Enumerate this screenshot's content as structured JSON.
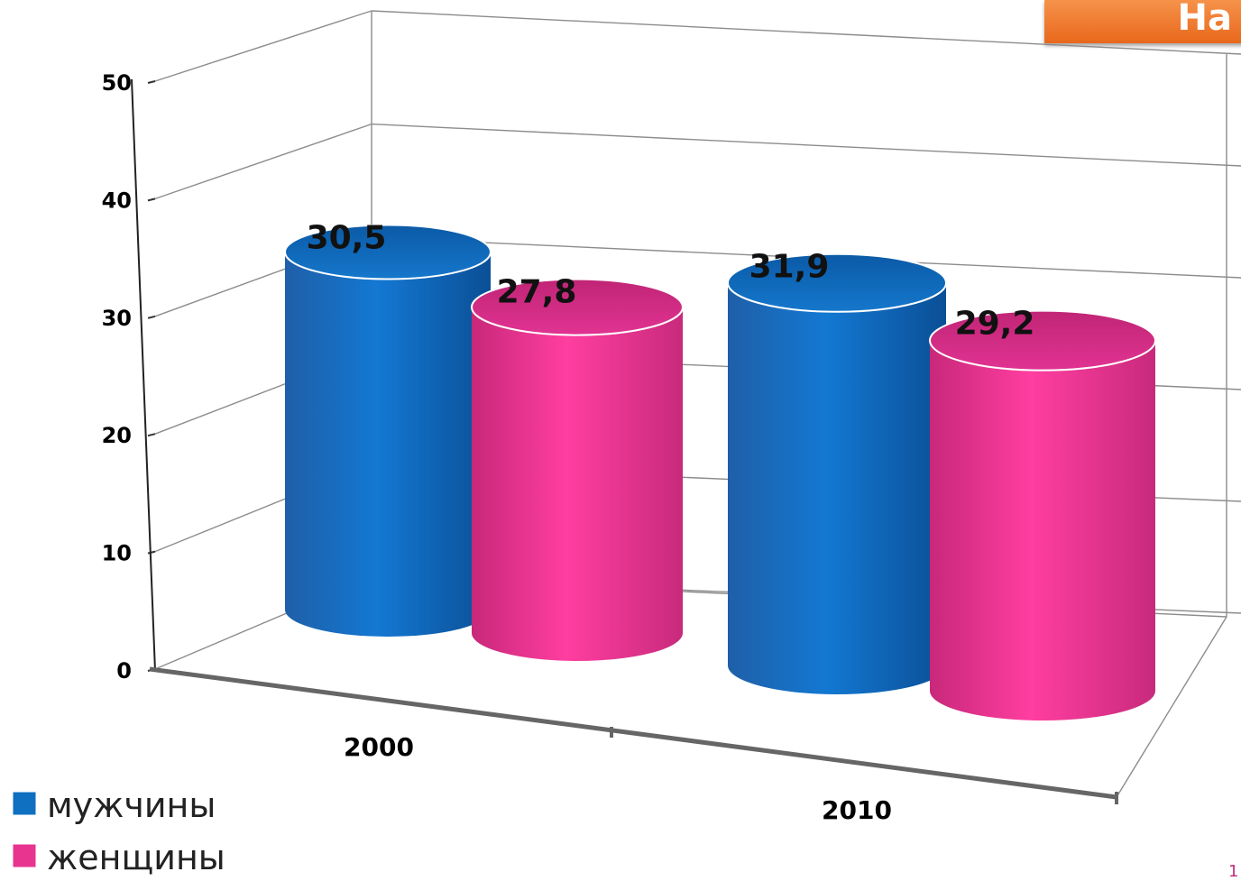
{
  "corner_tab": {
    "text": "На"
  },
  "page_number": "1",
  "colors": {
    "men": "#0f6fc0",
    "women": "#e8338f",
    "tab": "#ee7425"
  },
  "chart_data": {
    "type": "bar",
    "style": "3d-cylinder",
    "categories": [
      "2000",
      "2010"
    ],
    "series": [
      {
        "name": "мужчины",
        "values": [
          30.5,
          31.9
        ],
        "labels": [
          "30,5",
          "31,9"
        ],
        "color": "#0f6fc0"
      },
      {
        "name": "женщины",
        "values": [
          27.8,
          29.2
        ],
        "labels": [
          "27,8",
          "29,2"
        ],
        "color": "#e8338f"
      }
    ],
    "y_ticks": [
      "0",
      "10",
      "20",
      "30",
      "40",
      "50"
    ],
    "ylim": [
      0,
      50
    ],
    "grid": true,
    "legend_position": "bottom-left",
    "title": "",
    "xlabel": "",
    "ylabel": ""
  }
}
